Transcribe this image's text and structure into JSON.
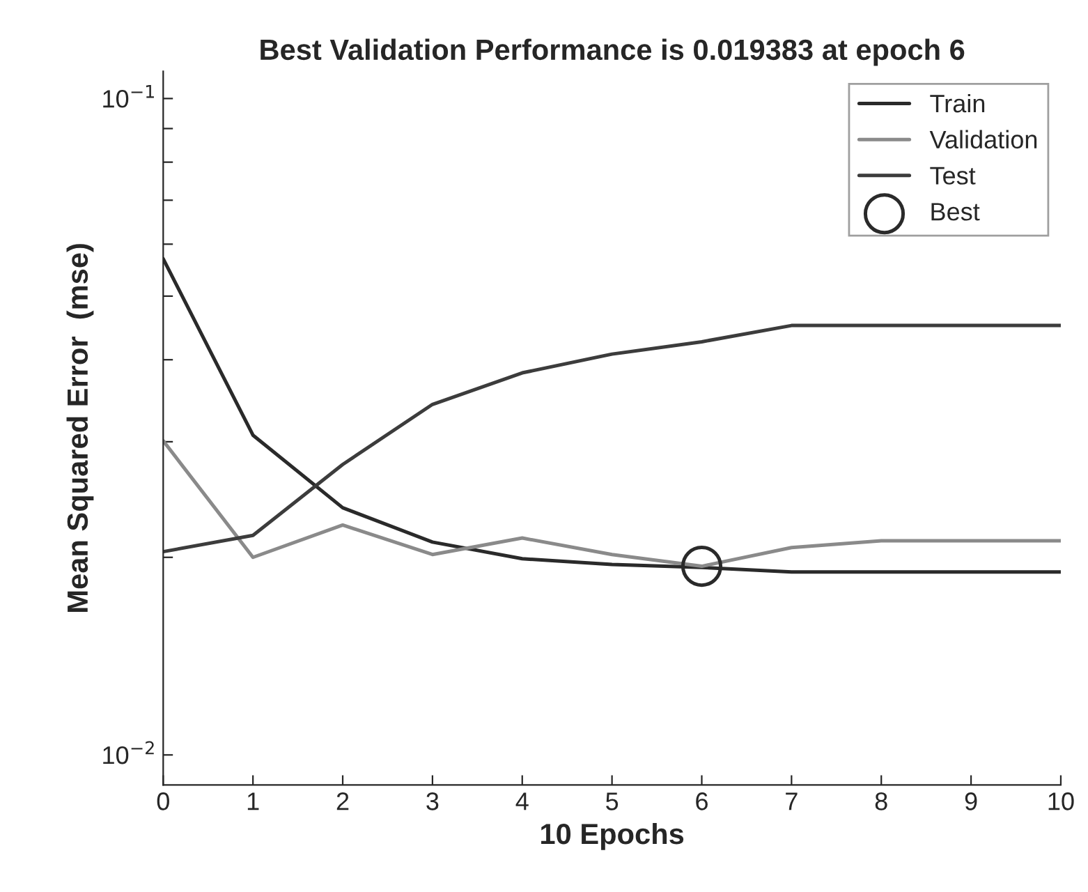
{
  "chart_data": {
    "type": "line",
    "title": "Best Validation Performance is 0.019383 at epoch 6",
    "xlabel": "10 Epochs",
    "ylabel": "Mean Squared Error  (mse)",
    "x": [
      0,
      1,
      2,
      3,
      4,
      5,
      6,
      7,
      8,
      9,
      10
    ],
    "series": [
      {
        "name": "Train",
        "color": "#2a2a2a",
        "values": [
          0.057,
          0.0307,
          0.0238,
          0.0211,
          0.0199,
          0.0195,
          0.0193,
          0.019,
          0.019,
          0.019,
          0.019
        ]
      },
      {
        "name": "Validation",
        "color": "#8a8a8a",
        "values": [
          0.0301,
          0.02,
          0.0224,
          0.0202,
          0.0214,
          0.0202,
          0.019383,
          0.0207,
          0.0212,
          0.0212,
          0.0212
        ]
      },
      {
        "name": "Test",
        "color": "#3c3c3c",
        "values": [
          0.0204,
          0.0216,
          0.0277,
          0.0342,
          0.0382,
          0.0408,
          0.0426,
          0.0451,
          0.0451,
          0.0451,
          0.0451
        ]
      },
      {
        "name": "Best",
        "type": "scatter",
        "marker": "circle",
        "color": "#2a2a2a",
        "x": [
          6
        ],
        "values": [
          0.019383
        ]
      }
    ],
    "log": "y",
    "xlim": [
      0,
      10
    ],
    "ylim": [
      0.009,
      0.11
    ],
    "xticks": [
      0,
      1,
      2,
      3,
      4,
      5,
      6,
      7,
      8,
      9,
      10
    ],
    "yticks": [
      {
        "value": 0.01,
        "label": "10$^{−2}$"
      },
      {
        "value": 0.02,
        "label": null
      },
      {
        "value": 0.03,
        "label": null
      },
      {
        "value": 0.04,
        "label": null
      },
      {
        "value": 0.05,
        "label": null
      },
      {
        "value": 0.06,
        "label": null
      },
      {
        "value": 0.07,
        "label": null
      },
      {
        "value": 0.08,
        "label": null
      },
      {
        "value": 0.09,
        "label": null
      },
      {
        "value": 0.1,
        "label": "10$^{−1}$"
      }
    ],
    "grid": false,
    "legend": "top right"
  }
}
